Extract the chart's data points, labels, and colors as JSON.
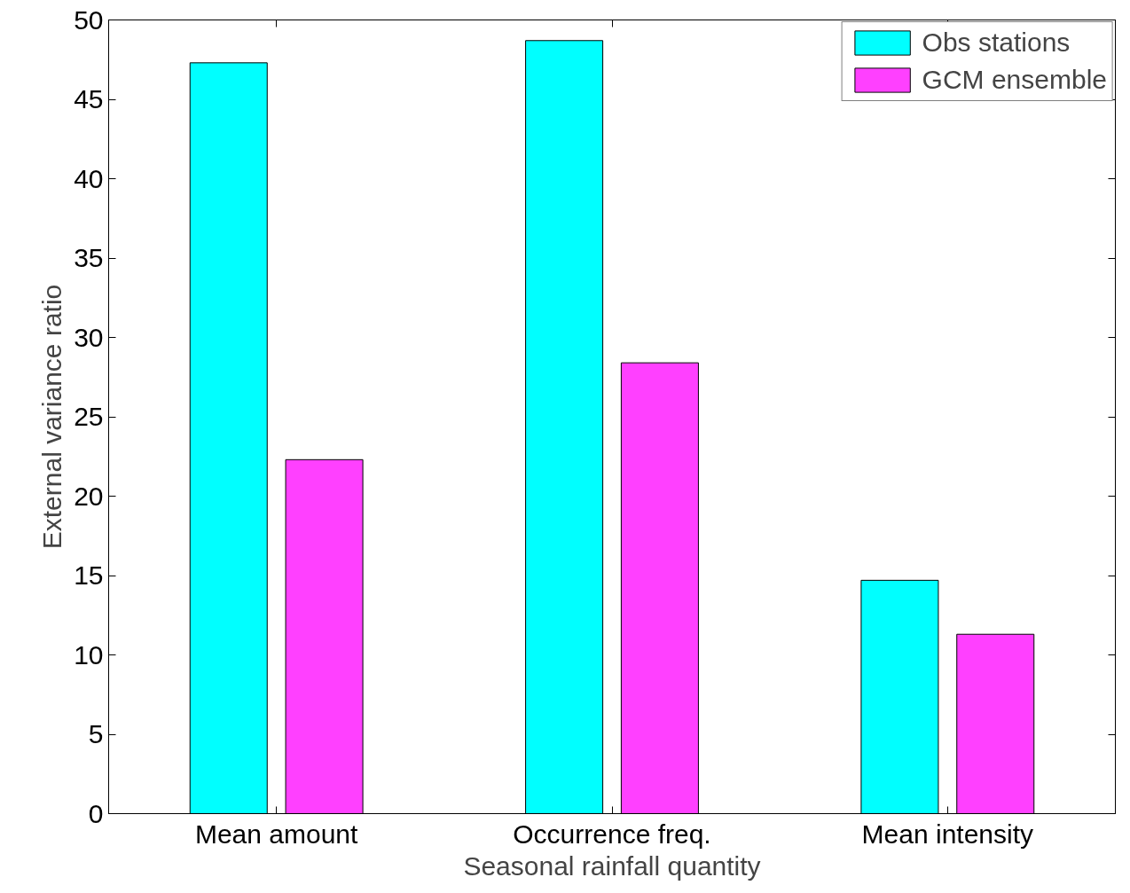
{
  "chart_data": {
    "type": "bar",
    "xlabel": "Seasonal rainfall quantity",
    "ylabel": "External variance ratio",
    "categories": [
      "Mean amount",
      "Occurrence freq.",
      "Mean intensity"
    ],
    "series": [
      {
        "name": "Obs stations",
        "color": "#00ffff",
        "values": [
          47.3,
          48.7,
          14.7
        ]
      },
      {
        "name": "GCM ensemble",
        "color": "#ff40ff",
        "values": [
          22.3,
          28.4,
          11.3
        ]
      }
    ],
    "ylim": [
      0,
      50
    ],
    "yticks": [
      0,
      5,
      10,
      15,
      20,
      25,
      30,
      35,
      40,
      45,
      50
    ],
    "grid": false,
    "legend": "top right"
  }
}
